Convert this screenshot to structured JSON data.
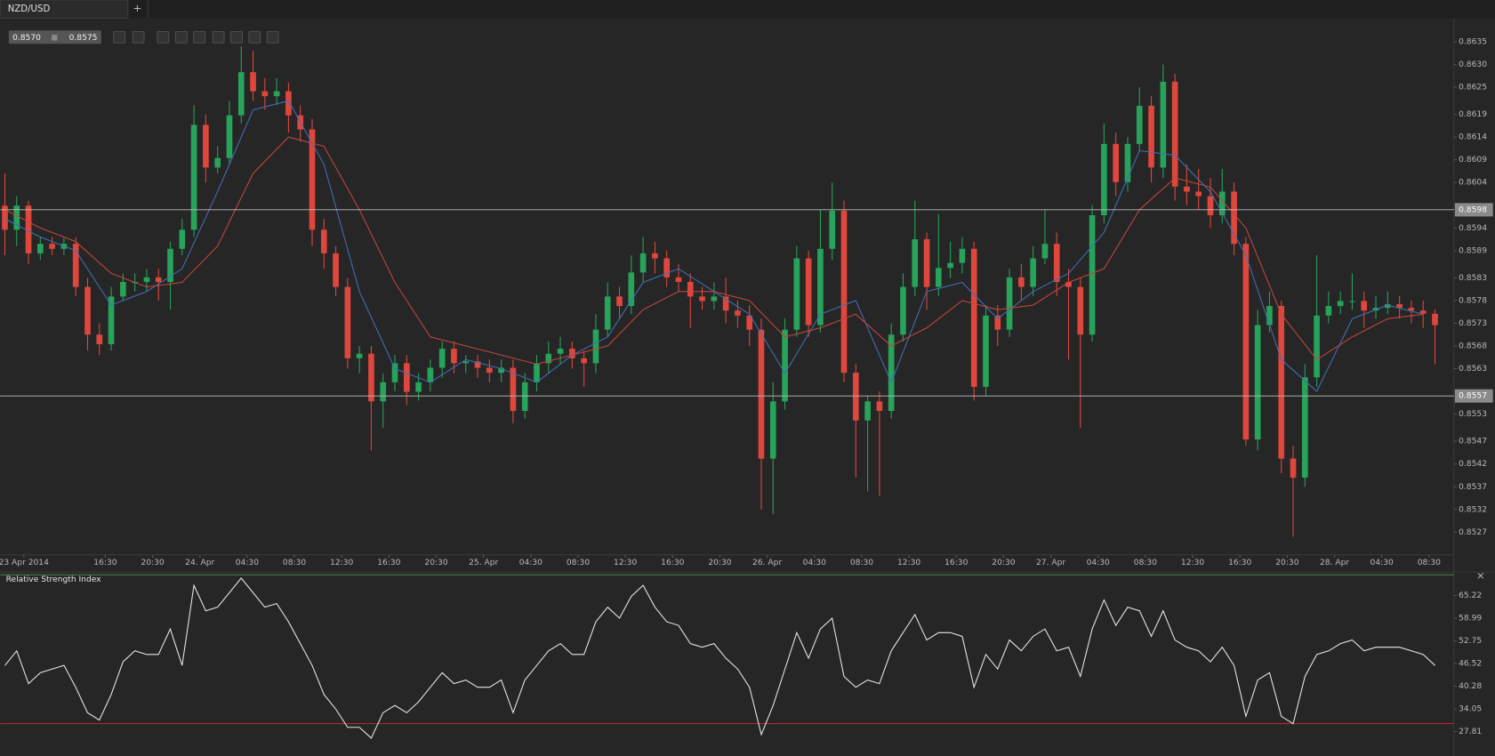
{
  "tab": "NZD/USD",
  "tab_add": "+",
  "toolbar": {
    "bid": "0.8570",
    "ask": "0.8575"
  },
  "panel_close": "×",
  "chart_data": [
    {
      "type": "candlestick",
      "up_color": "#27a35a",
      "down_color": "#e0473c",
      "xlim": [
        -0.4,
        122.6
      ],
      "ylim": [
        0.8522,
        0.864
      ],
      "grid": false,
      "yticks": [
        0.8635,
        {
          "value": 0.863,
          "label": "0.8630"
        },
        0.8625,
        0.8619,
        0.8614,
        0.8609,
        0.8604,
        0.8594,
        0.8589,
        0.8583,
        0.8578,
        0.8573,
        0.8568,
        0.8563,
        0.8553,
        0.8547,
        0.8542,
        0.8537,
        0.8532,
        0.8527
      ],
      "xticks": [
        {
          "value": 1.6,
          "label": "23 Apr 2014"
        },
        {
          "value": 8.5,
          "label": "16:30"
        },
        {
          "value": 12.5,
          "label": "20:30"
        },
        {
          "value": 16.5,
          "label": "24. Apr"
        },
        {
          "value": 20.5,
          "label": "04:30"
        },
        {
          "value": 24.5,
          "label": "08:30"
        },
        {
          "value": 28.5,
          "label": "12:30"
        },
        {
          "value": 32.5,
          "label": "16:30"
        },
        {
          "value": 36.5,
          "label": "20:30"
        },
        {
          "value": 40.5,
          "label": "25. Apr"
        },
        {
          "value": 44.5,
          "label": "04:30"
        },
        {
          "value": 48.5,
          "label": "08:30"
        },
        {
          "value": 52.5,
          "label": "12:30"
        },
        {
          "value": 56.5,
          "label": "16:30"
        },
        {
          "value": 60.5,
          "label": "20:30"
        },
        {
          "value": 64.5,
          "label": "26. Apr"
        },
        {
          "value": 68.5,
          "label": "04:30"
        },
        {
          "value": 72.5,
          "label": "08:30"
        },
        {
          "value": 76.5,
          "label": "12:30"
        },
        {
          "value": 80.5,
          "label": "16:30"
        },
        {
          "value": 84.5,
          "label": "20:30"
        },
        {
          "value": 88.5,
          "label": "27. Apr"
        },
        {
          "value": 92.5,
          "label": "04:30"
        },
        {
          "value": 96.5,
          "label": "08:30"
        },
        {
          "value": 100.5,
          "label": "12:30"
        },
        {
          "value": 104.5,
          "label": "16:30"
        },
        {
          "value": 108.5,
          "label": "20:30"
        },
        {
          "value": 112.5,
          "label": "28. Apr"
        },
        {
          "value": 116.5,
          "label": "04:30"
        },
        {
          "value": 120.5,
          "label": "08:30"
        }
      ],
      "levels": [
        0.8598,
        0.8557
      ],
      "level_color": "#bdbdbd",
      "candles": [
        [
          0.85989,
          0.8606,
          0.8588,
          0.85936
        ],
        [
          0.85936,
          0.8601,
          0.859,
          0.85989
        ],
        [
          0.85989,
          0.86,
          0.8586,
          0.85884
        ],
        [
          0.85884,
          0.8592,
          0.8587,
          0.85905
        ],
        [
          0.85905,
          0.8592,
          0.8588,
          0.85894
        ],
        [
          0.85894,
          0.8592,
          0.8588,
          0.85905
        ],
        [
          0.85905,
          0.8592,
          0.8579,
          0.8581
        ],
        [
          0.8581,
          0.8583,
          0.8567,
          0.85705
        ],
        [
          0.85705,
          0.8573,
          0.8566,
          0.85684
        ],
        [
          0.85684,
          0.8581,
          0.8567,
          0.85789
        ],
        [
          0.85789,
          0.8584,
          0.8578,
          0.85821
        ],
        [
          0.85821,
          0.8584,
          0.858,
          0.85821
        ],
        [
          0.85821,
          0.8585,
          0.858,
          0.85831
        ],
        [
          0.85831,
          0.8585,
          0.8578,
          0.85821
        ],
        [
          0.85821,
          0.8591,
          0.8576,
          0.85894
        ],
        [
          0.85894,
          0.8596,
          0.8588,
          0.85936
        ],
        [
          0.85936,
          0.8621,
          0.8592,
          0.86167
        ],
        [
          0.86167,
          0.8619,
          0.8604,
          0.86073
        ],
        [
          0.86073,
          0.8612,
          0.8606,
          0.86094
        ],
        [
          0.86094,
          0.8622,
          0.8608,
          0.86188
        ],
        [
          0.86188,
          0.8634,
          0.8617,
          0.86283
        ],
        [
          0.86283,
          0.8633,
          0.8622,
          0.86241
        ],
        [
          0.86241,
          0.8627,
          0.862,
          0.8623
        ],
        [
          0.8623,
          0.8627,
          0.8621,
          0.86241
        ],
        [
          0.86241,
          0.8626,
          0.8615,
          0.86188
        ],
        [
          0.86188,
          0.8621,
          0.8613,
          0.86157
        ],
        [
          0.86157,
          0.8618,
          0.859,
          0.85936
        ],
        [
          0.85936,
          0.8596,
          0.8585,
          0.85884
        ],
        [
          0.85884,
          0.859,
          0.8579,
          0.8581
        ],
        [
          0.8581,
          0.8583,
          0.8563,
          0.85653
        ],
        [
          0.85653,
          0.8568,
          0.8562,
          0.85663
        ],
        [
          0.85663,
          0.8568,
          0.8545,
          0.85558
        ],
        [
          0.85558,
          0.8562,
          0.855,
          0.856
        ],
        [
          0.856,
          0.8566,
          0.8558,
          0.85642
        ],
        [
          0.85642,
          0.8566,
          0.8555,
          0.85579
        ],
        [
          0.85579,
          0.8562,
          0.8556,
          0.856
        ],
        [
          0.856,
          0.8565,
          0.8558,
          0.85632
        ],
        [
          0.85632,
          0.8569,
          0.8561,
          0.85674
        ],
        [
          0.85674,
          0.8569,
          0.8562,
          0.85642
        ],
        [
          0.85642,
          0.8566,
          0.8562,
          0.85646
        ],
        [
          0.85646,
          0.8566,
          0.8561,
          0.85632
        ],
        [
          0.85632,
          0.8565,
          0.856,
          0.85621
        ],
        [
          0.85621,
          0.8565,
          0.856,
          0.85632
        ],
        [
          0.85632,
          0.8565,
          0.8551,
          0.85537
        ],
        [
          0.85537,
          0.8562,
          0.8552,
          0.856
        ],
        [
          0.856,
          0.8566,
          0.8558,
          0.85642
        ],
        [
          0.85642,
          0.8569,
          0.8562,
          0.85663
        ],
        [
          0.85663,
          0.857,
          0.8564,
          0.85674
        ],
        [
          0.85674,
          0.8569,
          0.8563,
          0.85653
        ],
        [
          0.85653,
          0.8567,
          0.8559,
          0.85642
        ],
        [
          0.85642,
          0.8575,
          0.8562,
          0.85716
        ],
        [
          0.85716,
          0.8582,
          0.857,
          0.85789
        ],
        [
          0.85789,
          0.8581,
          0.8574,
          0.85768
        ],
        [
          0.85768,
          0.8588,
          0.8575,
          0.85842
        ],
        [
          0.85842,
          0.8592,
          0.8582,
          0.85884
        ],
        [
          0.85884,
          0.8591,
          0.8584,
          0.85873
        ],
        [
          0.85873,
          0.8589,
          0.8581,
          0.85831
        ],
        [
          0.85831,
          0.8586,
          0.858,
          0.85821
        ],
        [
          0.85821,
          0.8584,
          0.8572,
          0.85789
        ],
        [
          0.85789,
          0.8581,
          0.8576,
          0.85779
        ],
        [
          0.85779,
          0.8582,
          0.8576,
          0.85789
        ],
        [
          0.85789,
          0.8583,
          0.8573,
          0.85758
        ],
        [
          0.85758,
          0.8578,
          0.8572,
          0.85747
        ],
        [
          0.85747,
          0.8577,
          0.8568,
          0.85716
        ],
        [
          0.85716,
          0.8574,
          0.8532,
          0.85432
        ],
        [
          0.85432,
          0.856,
          0.8531,
          0.85558
        ],
        [
          0.85558,
          0.8574,
          0.8554,
          0.85716
        ],
        [
          0.85716,
          0.859,
          0.857,
          0.85873
        ],
        [
          0.85873,
          0.8589,
          0.857,
          0.85726
        ],
        [
          0.85726,
          0.8598,
          0.8571,
          0.85894
        ],
        [
          0.85894,
          0.8604,
          0.8587,
          0.85978
        ],
        [
          0.85978,
          0.86,
          0.856,
          0.85621
        ],
        [
          0.85621,
          0.8564,
          0.8539,
          0.85516
        ],
        [
          0.85516,
          0.8557,
          0.8536,
          0.85558
        ],
        [
          0.85558,
          0.8558,
          0.8535,
          0.85537
        ],
        [
          0.85537,
          0.8573,
          0.8552,
          0.85705
        ],
        [
          0.85705,
          0.8584,
          0.8569,
          0.8581
        ],
        [
          0.8581,
          0.86,
          0.8579,
          0.85915
        ],
        [
          0.85915,
          0.8593,
          0.8576,
          0.8581
        ],
        [
          0.8581,
          0.8597,
          0.8579,
          0.85852
        ],
        [
          0.85852,
          0.8591,
          0.8583,
          0.85863
        ],
        [
          0.85863,
          0.8592,
          0.8584,
          0.85894
        ],
        [
          0.85894,
          0.8591,
          0.8556,
          0.8559
        ],
        [
          0.8559,
          0.8577,
          0.8557,
          0.85747
        ],
        [
          0.85747,
          0.8577,
          0.8568,
          0.85716
        ],
        [
          0.85716,
          0.8585,
          0.857,
          0.85831
        ],
        [
          0.85831,
          0.8586,
          0.8578,
          0.8581
        ],
        [
          0.8581,
          0.859,
          0.8579,
          0.85873
        ],
        [
          0.85873,
          0.8598,
          0.8586,
          0.85905
        ],
        [
          0.85905,
          0.8593,
          0.8579,
          0.85821
        ],
        [
          0.85821,
          0.8585,
          0.8565,
          0.8581
        ],
        [
          0.8581,
          0.8583,
          0.855,
          0.85705
        ],
        [
          0.85705,
          0.8599,
          0.8569,
          0.85968
        ],
        [
          0.85968,
          0.8617,
          0.8595,
          0.86125
        ],
        [
          0.86125,
          0.8615,
          0.8601,
          0.86041
        ],
        [
          0.86041,
          0.8614,
          0.8602,
          0.86125
        ],
        [
          0.86125,
          0.8625,
          0.8611,
          0.86209
        ],
        [
          0.86209,
          0.8623,
          0.8604,
          0.86073
        ],
        [
          0.86073,
          0.863,
          0.8605,
          0.86262
        ],
        [
          0.86262,
          0.8628,
          0.86,
          0.86031
        ],
        [
          0.86031,
          0.8608,
          0.8599,
          0.8602
        ],
        [
          0.8602,
          0.8607,
          0.8598,
          0.8601
        ],
        [
          0.8601,
          0.8605,
          0.8594,
          0.85968
        ],
        [
          0.85968,
          0.8607,
          0.8595,
          0.8602
        ],
        [
          0.8602,
          0.8604,
          0.8588,
          0.85905
        ],
        [
          0.85905,
          0.8592,
          0.8546,
          0.85474
        ],
        [
          0.85474,
          0.8576,
          0.8545,
          0.85726
        ],
        [
          0.85726,
          0.858,
          0.8571,
          0.85768
        ],
        [
          0.85768,
          0.8578,
          0.854,
          0.85432
        ],
        [
          0.85432,
          0.8546,
          0.8526,
          0.8539
        ],
        [
          0.8539,
          0.8564,
          0.8537,
          0.85611
        ],
        [
          0.85611,
          0.8588,
          0.8559,
          0.85747
        ],
        [
          0.85747,
          0.858,
          0.8573,
          0.85768
        ],
        [
          0.85768,
          0.858,
          0.8575,
          0.85779
        ],
        [
          0.85779,
          0.8584,
          0.8576,
          0.85779
        ],
        [
          0.85779,
          0.858,
          0.8572,
          0.85758
        ],
        [
          0.85758,
          0.8579,
          0.8574,
          0.85764
        ],
        [
          0.85764,
          0.858,
          0.8575,
          0.85772
        ],
        [
          0.85772,
          0.8579,
          0.8574,
          0.85764
        ],
        [
          0.85764,
          0.8578,
          0.8573,
          0.85758
        ],
        [
          0.85758,
          0.8578,
          0.8572,
          0.85751
        ],
        [
          0.85751,
          0.8576,
          0.8564,
          0.85726
        ]
      ],
      "overlays": [
        {
          "color": "#3f6fb5",
          "x": [
            0,
            3,
            6,
            9,
            12,
            15,
            18,
            21,
            24,
            27,
            30,
            33,
            36,
            39,
            42,
            45,
            48,
            51,
            54,
            57,
            60,
            63,
            66,
            69,
            72,
            75,
            78,
            81,
            84,
            87,
            90,
            93,
            96,
            99,
            102,
            105,
            108,
            111,
            114,
            117,
            120
          ],
          "values": [
            0.8596,
            0.8592,
            0.8589,
            0.8577,
            0.858,
            0.8585,
            0.8602,
            0.862,
            0.8622,
            0.8608,
            0.858,
            0.8563,
            0.856,
            0.8565,
            0.8563,
            0.856,
            0.8566,
            0.857,
            0.8582,
            0.8585,
            0.858,
            0.8575,
            0.8562,
            0.8575,
            0.8578,
            0.856,
            0.858,
            0.8582,
            0.8574,
            0.858,
            0.8584,
            0.8593,
            0.8611,
            0.861,
            0.8602,
            0.8588,
            0.8565,
            0.8558,
            0.8574,
            0.8577,
            0.8575
          ]
        },
        {
          "color": "#c0463d",
          "x": [
            0,
            3,
            6,
            9,
            12,
            15,
            18,
            21,
            24,
            27,
            30,
            33,
            36,
            39,
            42,
            45,
            48,
            51,
            54,
            57,
            60,
            63,
            66,
            69,
            72,
            75,
            78,
            81,
            84,
            87,
            90,
            93,
            96,
            99,
            102,
            105,
            108,
            111,
            114,
            117,
            120
          ],
          "values": [
            0.8598,
            0.8594,
            0.8591,
            0.8584,
            0.8581,
            0.8582,
            0.859,
            0.8606,
            0.8614,
            0.8612,
            0.8598,
            0.8582,
            0.857,
            0.8568,
            0.8566,
            0.8564,
            0.8566,
            0.8568,
            0.8576,
            0.858,
            0.858,
            0.8578,
            0.857,
            0.8572,
            0.8575,
            0.8568,
            0.8572,
            0.8578,
            0.8576,
            0.8577,
            0.8582,
            0.8585,
            0.8598,
            0.8605,
            0.8603,
            0.8594,
            0.8575,
            0.8565,
            0.857,
            0.8574,
            0.8575
          ]
        }
      ]
    },
    {
      "type": "line",
      "title": "Relative Strength Index",
      "color": "#e6e6e6",
      "xlim": [
        -0.4,
        122.6
      ],
      "ylim": [
        21.9,
        70.1
      ],
      "yticks": [
        65.22,
        58.99,
        52.75,
        46.52,
        40.28,
        34.05,
        27.81
      ],
      "level": 30,
      "level_color": "#c0282d",
      "values": [
        46,
        50,
        41,
        44,
        45,
        46,
        40,
        33,
        31,
        38,
        47,
        50,
        49,
        49,
        56,
        46,
        68,
        61,
        62,
        66,
        70,
        66,
        62,
        63,
        58,
        52,
        46,
        38,
        34,
        29,
        29,
        26,
        33,
        35,
        33,
        36,
        40,
        44,
        41,
        42,
        40,
        40,
        42,
        33,
        42,
        46,
        50,
        52,
        49,
        49,
        58,
        62,
        59,
        65,
        68,
        62,
        58,
        57,
        52,
        51,
        52,
        48,
        45,
        40,
        27,
        35,
        45,
        55,
        48,
        56,
        59,
        43,
        40,
        42,
        41,
        50,
        55,
        60,
        53,
        55,
        55,
        54,
        40,
        49,
        45,
        53,
        50,
        54,
        56,
        50,
        51,
        43,
        56,
        64,
        57,
        62,
        61,
        54,
        61,
        53,
        51,
        50,
        47,
        51,
        46,
        32,
        42,
        44,
        32,
        30,
        43,
        49,
        50,
        52,
        53,
        50,
        51,
        51,
        51,
        50,
        49,
        46
      ]
    }
  ]
}
